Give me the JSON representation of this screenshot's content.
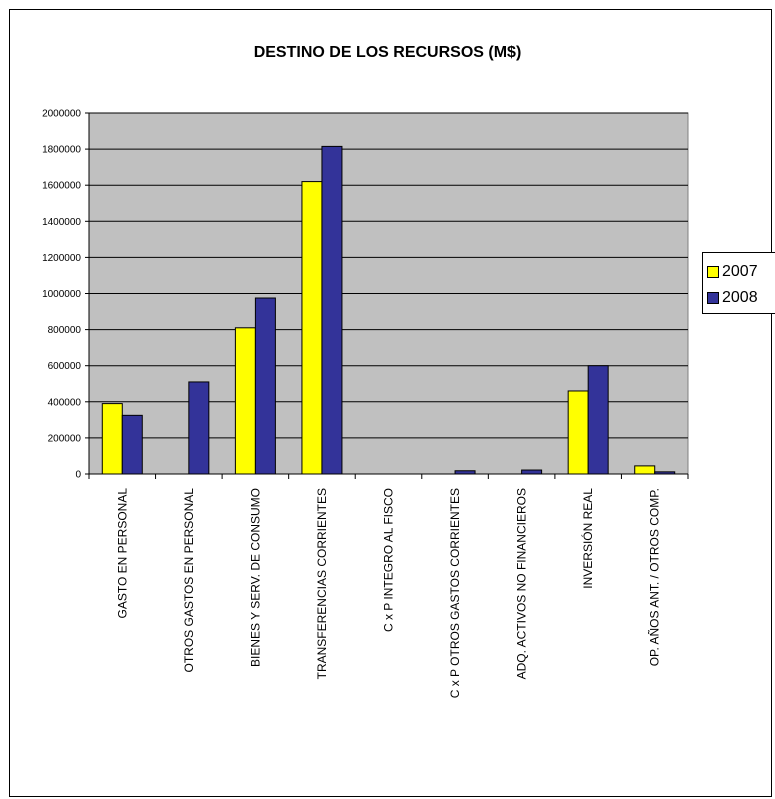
{
  "chart_data": {
    "type": "bar",
    "title": "DESTINO DE LOS RECURSOS (M$)",
    "categories": [
      "GASTO EN PERSONAL",
      "OTROS GASTOS EN PERSONAL",
      "BIENES Y SERV. DE CONSUMO",
      "TRANSFERENCIAS CORRIENTES",
      "C x P INTEGRO AL FISCO",
      "C x P OTROS GASTOS CORRIENTES",
      "ADQ. ACTIVOS NO FINANCIEROS",
      "INVERSIÓN REAL",
      "OP. AÑOS ANT. / OTROS COMP."
    ],
    "series": [
      {
        "name": "2007",
        "color": "#ffff00",
        "values": [
          390000,
          0,
          810000,
          1620000,
          0,
          0,
          0,
          460000,
          45000
        ]
      },
      {
        "name": "2008",
        "color": "#333399",
        "values": [
          325000,
          510000,
          975000,
          1815000,
          0,
          18000,
          22000,
          600000,
          12000
        ]
      }
    ],
    "ylim": [
      0,
      2000000
    ],
    "yticks": [
      "0",
      "200000",
      "400000",
      "600000",
      "800000",
      "1000000",
      "1200000",
      "1400000",
      "1600000",
      "1800000",
      "2000000"
    ],
    "plot_background": "#c0c0c0",
    "grid": true,
    "legend_position": "right"
  }
}
